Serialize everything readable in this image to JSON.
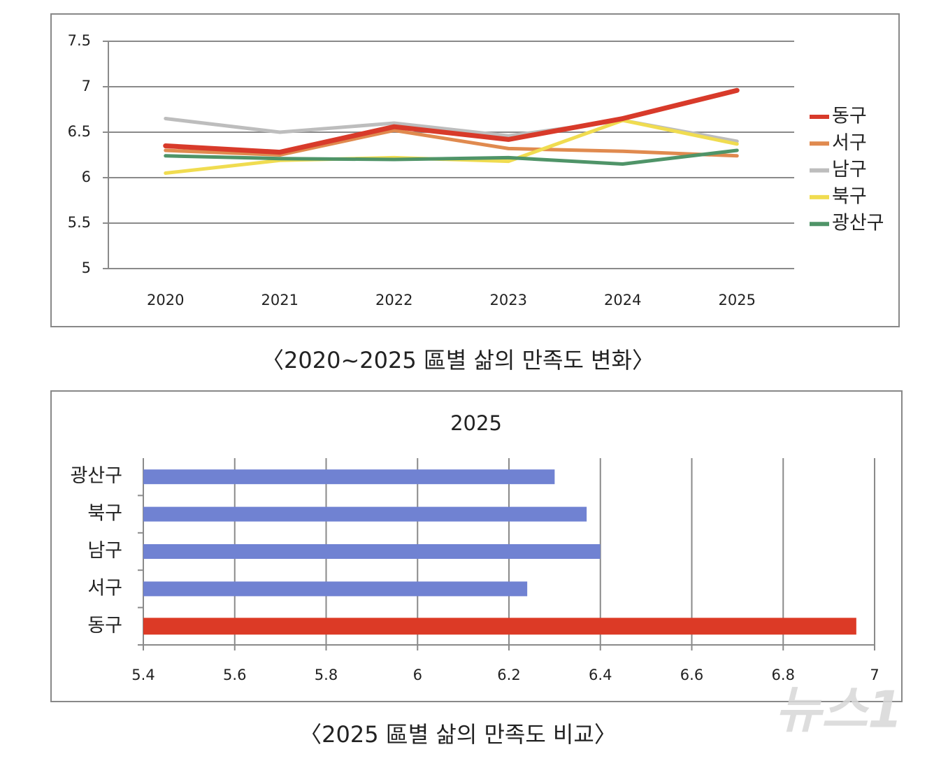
{
  "chart_data": [
    {
      "type": "line",
      "caption": "〈2020~2025 區별 삶의 만족도 변화〉",
      "categories": [
        "2020",
        "2021",
        "2022",
        "2023",
        "2024",
        "2025"
      ],
      "series": [
        {
          "name": "동구",
          "color": "#d83a2a",
          "values": [
            6.35,
            6.28,
            6.56,
            6.42,
            6.65,
            6.96
          ]
        },
        {
          "name": "서구",
          "color": "#e08a4f",
          "values": [
            6.3,
            6.25,
            6.52,
            6.32,
            6.29,
            6.24
          ]
        },
        {
          "name": "남구",
          "color": "#bdbdbd",
          "values": [
            6.65,
            6.5,
            6.6,
            6.46,
            6.63,
            6.4
          ]
        },
        {
          "name": "북구",
          "color": "#f0dc50",
          "values": [
            6.05,
            6.19,
            6.22,
            6.18,
            6.63,
            6.37
          ]
        },
        {
          "name": "광산구",
          "color": "#4f9468",
          "values": [
            6.24,
            6.21,
            6.2,
            6.22,
            6.15,
            6.3
          ]
        }
      ],
      "ylim": [
        5,
        7.5
      ],
      "yticks": [
        5,
        5.5,
        6,
        6.5,
        7,
        7.5
      ],
      "grid": true,
      "legend": "right"
    },
    {
      "type": "hbar",
      "title": "2025",
      "caption": "〈2025 區별 삶의 만족도 비교〉",
      "categories": [
        "동구",
        "서구",
        "남구",
        "북구",
        "광산구"
      ],
      "values": [
        6.96,
        6.24,
        6.4,
        6.37,
        6.3
      ],
      "colors": [
        "#dc3a26",
        "#7082d2",
        "#7082d2",
        "#7082d2",
        "#7082d2"
      ],
      "xlim": [
        5.4,
        7
      ],
      "xticks": [
        5.4,
        5.6,
        5.8,
        6,
        6.2,
        6.4,
        6.6,
        6.8,
        7
      ],
      "grid": true
    }
  ],
  "watermark": "뉴스1"
}
